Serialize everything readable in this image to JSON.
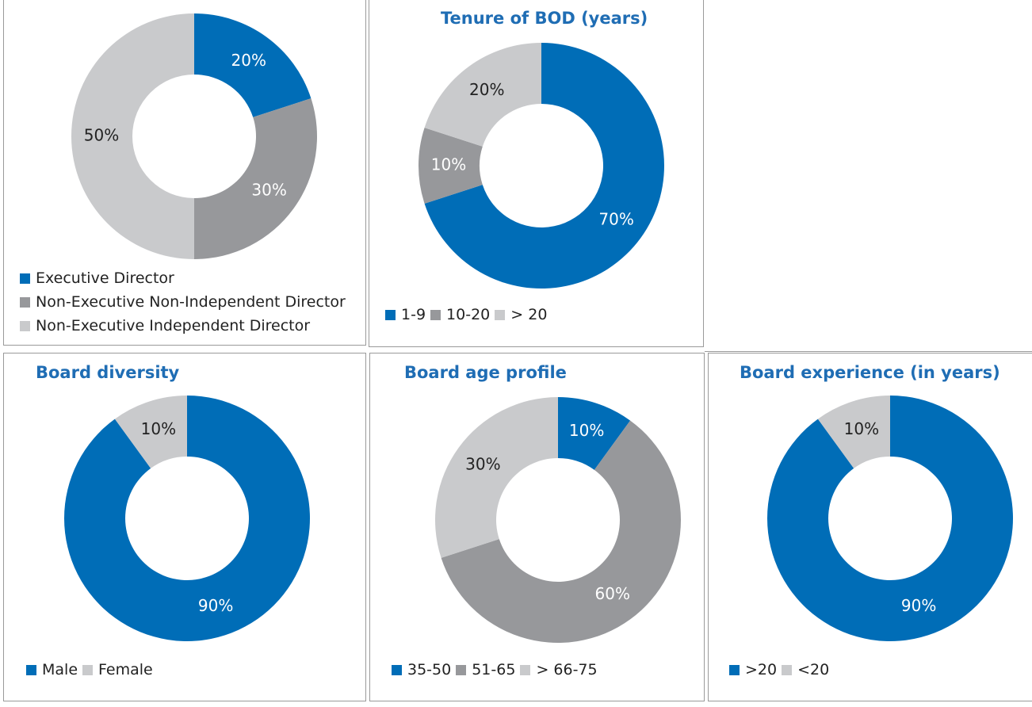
{
  "colors": {
    "blue": "#006db7",
    "gray": "#97989b",
    "light": "#c9cacc",
    "title": "#1f6db4"
  },
  "chart_data": [
    {
      "id": "composition",
      "type": "pie",
      "title": "",
      "slices": [
        {
          "label": "Executive Director",
          "value": 20,
          "data_label": "20%",
          "color": "#006db7"
        },
        {
          "label": "Non-Executive Non-Independent Director",
          "value": 30,
          "data_label": "30%",
          "color": "#97989b"
        },
        {
          "label": "Non-Executive Independent Director",
          "value": 50,
          "data_label": "50%",
          "color": "#c9cacc"
        }
      ],
      "legend": "bottom-left"
    },
    {
      "id": "tenure",
      "type": "pie",
      "title": "Tenure of BOD (years)",
      "slices": [
        {
          "label": "1-9",
          "value": 70,
          "data_label": "70%",
          "color": "#006db7"
        },
        {
          "label": "10-20",
          "value": 10,
          "data_label": "10%",
          "color": "#97989b"
        },
        {
          "label": "> 20",
          "value": 20,
          "data_label": "20%",
          "color": "#c9cacc"
        }
      ],
      "legend": "bottom-left"
    },
    {
      "id": "diversity",
      "type": "pie",
      "title": "Board diversity",
      "slices": [
        {
          "label": "Male",
          "value": 90,
          "data_label": "90%",
          "color": "#006db7"
        },
        {
          "label": "Female",
          "value": 10,
          "data_label": "10%",
          "color": "#c9cacc"
        }
      ],
      "legend": "bottom-left"
    },
    {
      "id": "age",
      "type": "pie",
      "title": "Board age profile",
      "slices": [
        {
          "label": "35-50",
          "value": 10,
          "data_label": "10%",
          "color": "#006db7"
        },
        {
          "label": "51-65",
          "value": 60,
          "data_label": "60%",
          "color": "#97989b"
        },
        {
          "label": "> 66-75",
          "value": 30,
          "data_label": "30%",
          "color": "#c9cacc"
        }
      ],
      "legend": "bottom-left"
    },
    {
      "id": "experience",
      "type": "pie",
      "title": "Board experience (in years)",
      "slices": [
        {
          "label": ">20",
          "value": 90,
          "data_label": "90%",
          "color": "#006db7"
        },
        {
          "label": "<20",
          "value": 10,
          "data_label": "10%",
          "color": "#c9cacc"
        }
      ],
      "legend": "bottom-left"
    }
  ]
}
